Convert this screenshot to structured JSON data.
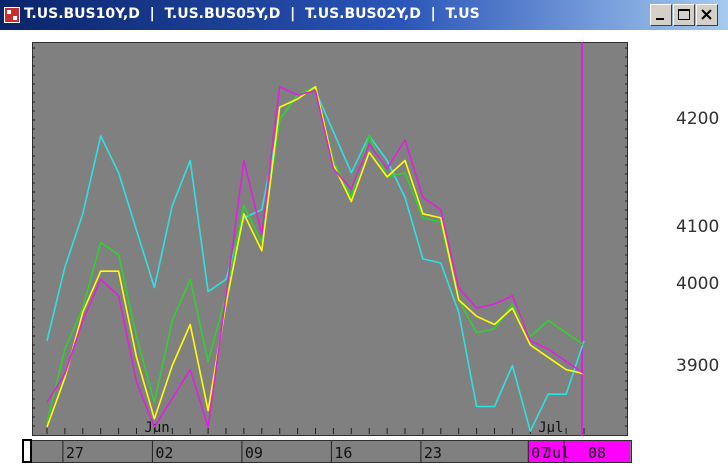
{
  "window": {
    "title": "T.US.BUS10Y,D  |  T.US.BUS05Y,D  |  T.US.BUS02Y,D  |  T.US",
    "buttons": [
      "minimize",
      "maximize",
      "close"
    ]
  },
  "chart_data": {
    "type": "line",
    "x": [
      1,
      2,
      3,
      4,
      5,
      6,
      7,
      8,
      9,
      10,
      11,
      12,
      13,
      14,
      15,
      16,
      17,
      18,
      19,
      20,
      21,
      22,
      23,
      24,
      25,
      26,
      27,
      28,
      29,
      30,
      31
    ],
    "x_tick_labels": [
      {
        "at": 2,
        "label": "27"
      },
      {
        "at": 7,
        "label": "02"
      },
      {
        "at": 12,
        "label": "09"
      },
      {
        "at": 17,
        "label": "16"
      },
      {
        "at": 22,
        "label": "23"
      },
      {
        "at": 28,
        "label": "07"
      },
      {
        "at": 30,
        "label": "08"
      }
    ],
    "month_labels": [
      {
        "at": 7,
        "label": "Jun"
      },
      {
        "at": 29,
        "label": "Jul"
      }
    ],
    "cursor_label": "07 Jul 08",
    "y_ticks": [
      3900,
      4000,
      4100,
      4200
    ],
    "ylim": [
      3830,
      4270
    ],
    "series": [
      {
        "color": "#30e0e0",
        "values": [
          3955,
          4045,
          4110,
          4205,
          4160,
          4090,
          4020,
          4120,
          4175,
          4015,
          4030,
          4105,
          4115,
          4225,
          4255,
          4260,
          4210,
          4160,
          4205,
          4175,
          4130,
          4055,
          4050,
          3990,
          3875,
          3875,
          3925,
          3845,
          3890,
          3890,
          3955
        ]
      },
      {
        "color": "#30d030",
        "values": [
          3855,
          3945,
          3995,
          4075,
          4060,
          3960,
          3880,
          3980,
          4030,
          3930,
          4010,
          4120,
          4075,
          4225,
          4255,
          4265,
          4175,
          4130,
          4205,
          4155,
          4160,
          4105,
          4100,
          4005,
          3965,
          3970,
          4000,
          3960,
          3980,
          3965,
          3950
        ]
      },
      {
        "color": "#ffff00",
        "values": [
          3850,
          3910,
          3990,
          4040,
          4040,
          3935,
          3860,
          3925,
          3975,
          3870,
          4000,
          4110,
          4065,
          4240,
          4250,
          4265,
          4170,
          4125,
          4185,
          4155,
          4175,
          4110,
          4105,
          4005,
          3985,
          3975,
          3995,
          3950,
          3935,
          3920,
          3915
        ]
      },
      {
        "color": "#e020e0",
        "values": [
          3880,
          3915,
          3980,
          4030,
          4010,
          3905,
          3850,
          3885,
          3920,
          3850,
          4010,
          4175,
          4085,
          4265,
          4255,
          4260,
          4165,
          4140,
          4195,
          4165,
          4200,
          4130,
          4115,
          4020,
          3995,
          4000,
          4010,
          3955,
          3945,
          3930,
          3915
        ]
      }
    ]
  },
  "cursor": {
    "color": "#ff00ff"
  }
}
